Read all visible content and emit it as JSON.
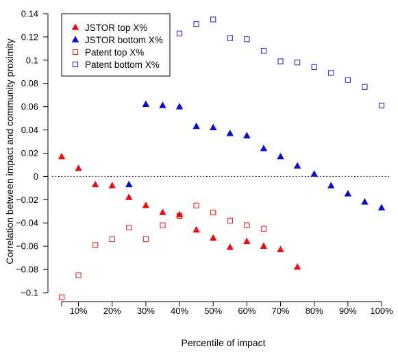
{
  "chart_data": {
    "type": "scatter",
    "xlabel": "Percentile of impact",
    "ylabel": "Correlation between impact and community proximity",
    "x_tick_labels": [
      "10%",
      "20%",
      "30%",
      "40%",
      "50%",
      "60%",
      "70%",
      "80%",
      "90%",
      "100%"
    ],
    "x_tick_values": [
      10,
      20,
      30,
      40,
      50,
      60,
      70,
      80,
      90,
      100
    ],
    "y_tick_labels": [
      "−0.1",
      "−0.08",
      "−0.06",
      "−0.04",
      "−0.02",
      "0",
      "0.02",
      "0.04",
      "0.06",
      "0.08",
      "0.1",
      "0.12",
      "0.14"
    ],
    "y_tick_values": [
      -0.1,
      -0.08,
      -0.06,
      -0.04,
      -0.02,
      0,
      0.02,
      0.04,
      0.06,
      0.08,
      0.1,
      0.12,
      0.14
    ],
    "xlim": [
      5,
      100
    ],
    "ylim": [
      -0.1,
      0.15
    ],
    "reference_line": 0,
    "legend_position": "top-left",
    "grid": false,
    "series": [
      {
        "name": "JSTOR top X%",
        "marker": "filled-triangle",
        "color": "#e81010",
        "x": [
          5,
          10,
          15,
          20,
          25,
          30,
          35,
          40,
          45,
          50,
          55,
          60,
          65,
          70,
          75
        ],
        "y": [
          0.017,
          0.007,
          -0.007,
          -0.008,
          -0.018,
          -0.025,
          -0.031,
          -0.033,
          -0.046,
          -0.053,
          -0.061,
          -0.056,
          -0.06,
          -0.063,
          -0.078
        ]
      },
      {
        "name": "JSTOR bottom X%",
        "marker": "filled-triangle",
        "color": "#0a10c8",
        "x": [
          25,
          30,
          35,
          40,
          45,
          50,
          55,
          60,
          65,
          70,
          75,
          80,
          85,
          90,
          95,
          100
        ],
        "y": [
          -0.007,
          0.062,
          0.061,
          0.06,
          0.043,
          0.042,
          0.037,
          0.035,
          0.024,
          0.017,
          0.009,
          0.002,
          -0.008,
          -0.015,
          -0.022,
          -0.027
        ]
      },
      {
        "name": "Patent top X%",
        "marker": "open-square",
        "color": "#e81010",
        "x": [
          5,
          10,
          15,
          20,
          25,
          30,
          35,
          40,
          45,
          50,
          55,
          60,
          65
        ],
        "y": [
          -0.104,
          -0.085,
          -0.059,
          -0.054,
          -0.044,
          -0.054,
          -0.042,
          -0.034,
          -0.025,
          -0.031,
          -0.038,
          -0.042,
          -0.045
        ]
      },
      {
        "name": "Patent bottom X%",
        "marker": "open-square",
        "color": "#1a1ab4",
        "x": [
          35,
          40,
          45,
          50,
          55,
          60,
          65,
          70,
          75,
          80,
          85,
          90,
          95,
          100
        ],
        "y": [
          0.099,
          0.123,
          0.131,
          0.135,
          0.119,
          0.118,
          0.108,
          0.099,
          0.098,
          0.094,
          0.089,
          0.083,
          0.077,
          0.061
        ]
      }
    ]
  }
}
